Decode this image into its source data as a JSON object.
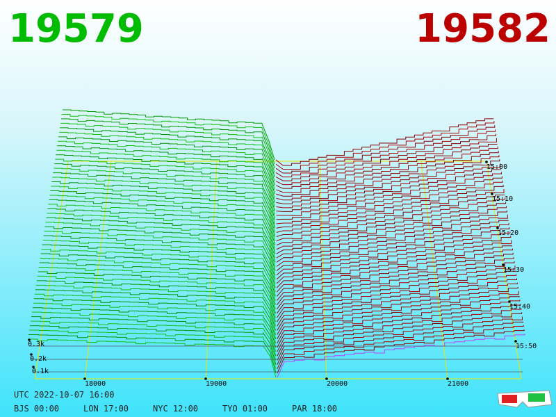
{
  "bid_price": "19579",
  "ask_price": "19582",
  "price_axis": [
    "18000",
    "19000",
    "20000",
    "21000"
  ],
  "volume_axis": [
    "0.3k",
    "0.2k",
    "0.1k"
  ],
  "time_axis": [
    "15:00",
    "15:10",
    "15:20",
    "15:30",
    "15:40",
    "15:50"
  ],
  "clock": {
    "utc": "UTC 2022-10-07 16:00",
    "zones": [
      "BJS 00:00",
      "LON 17:00",
      "NYC 12:00",
      "TYO 01:00",
      "PAR 18:00"
    ]
  }
}
